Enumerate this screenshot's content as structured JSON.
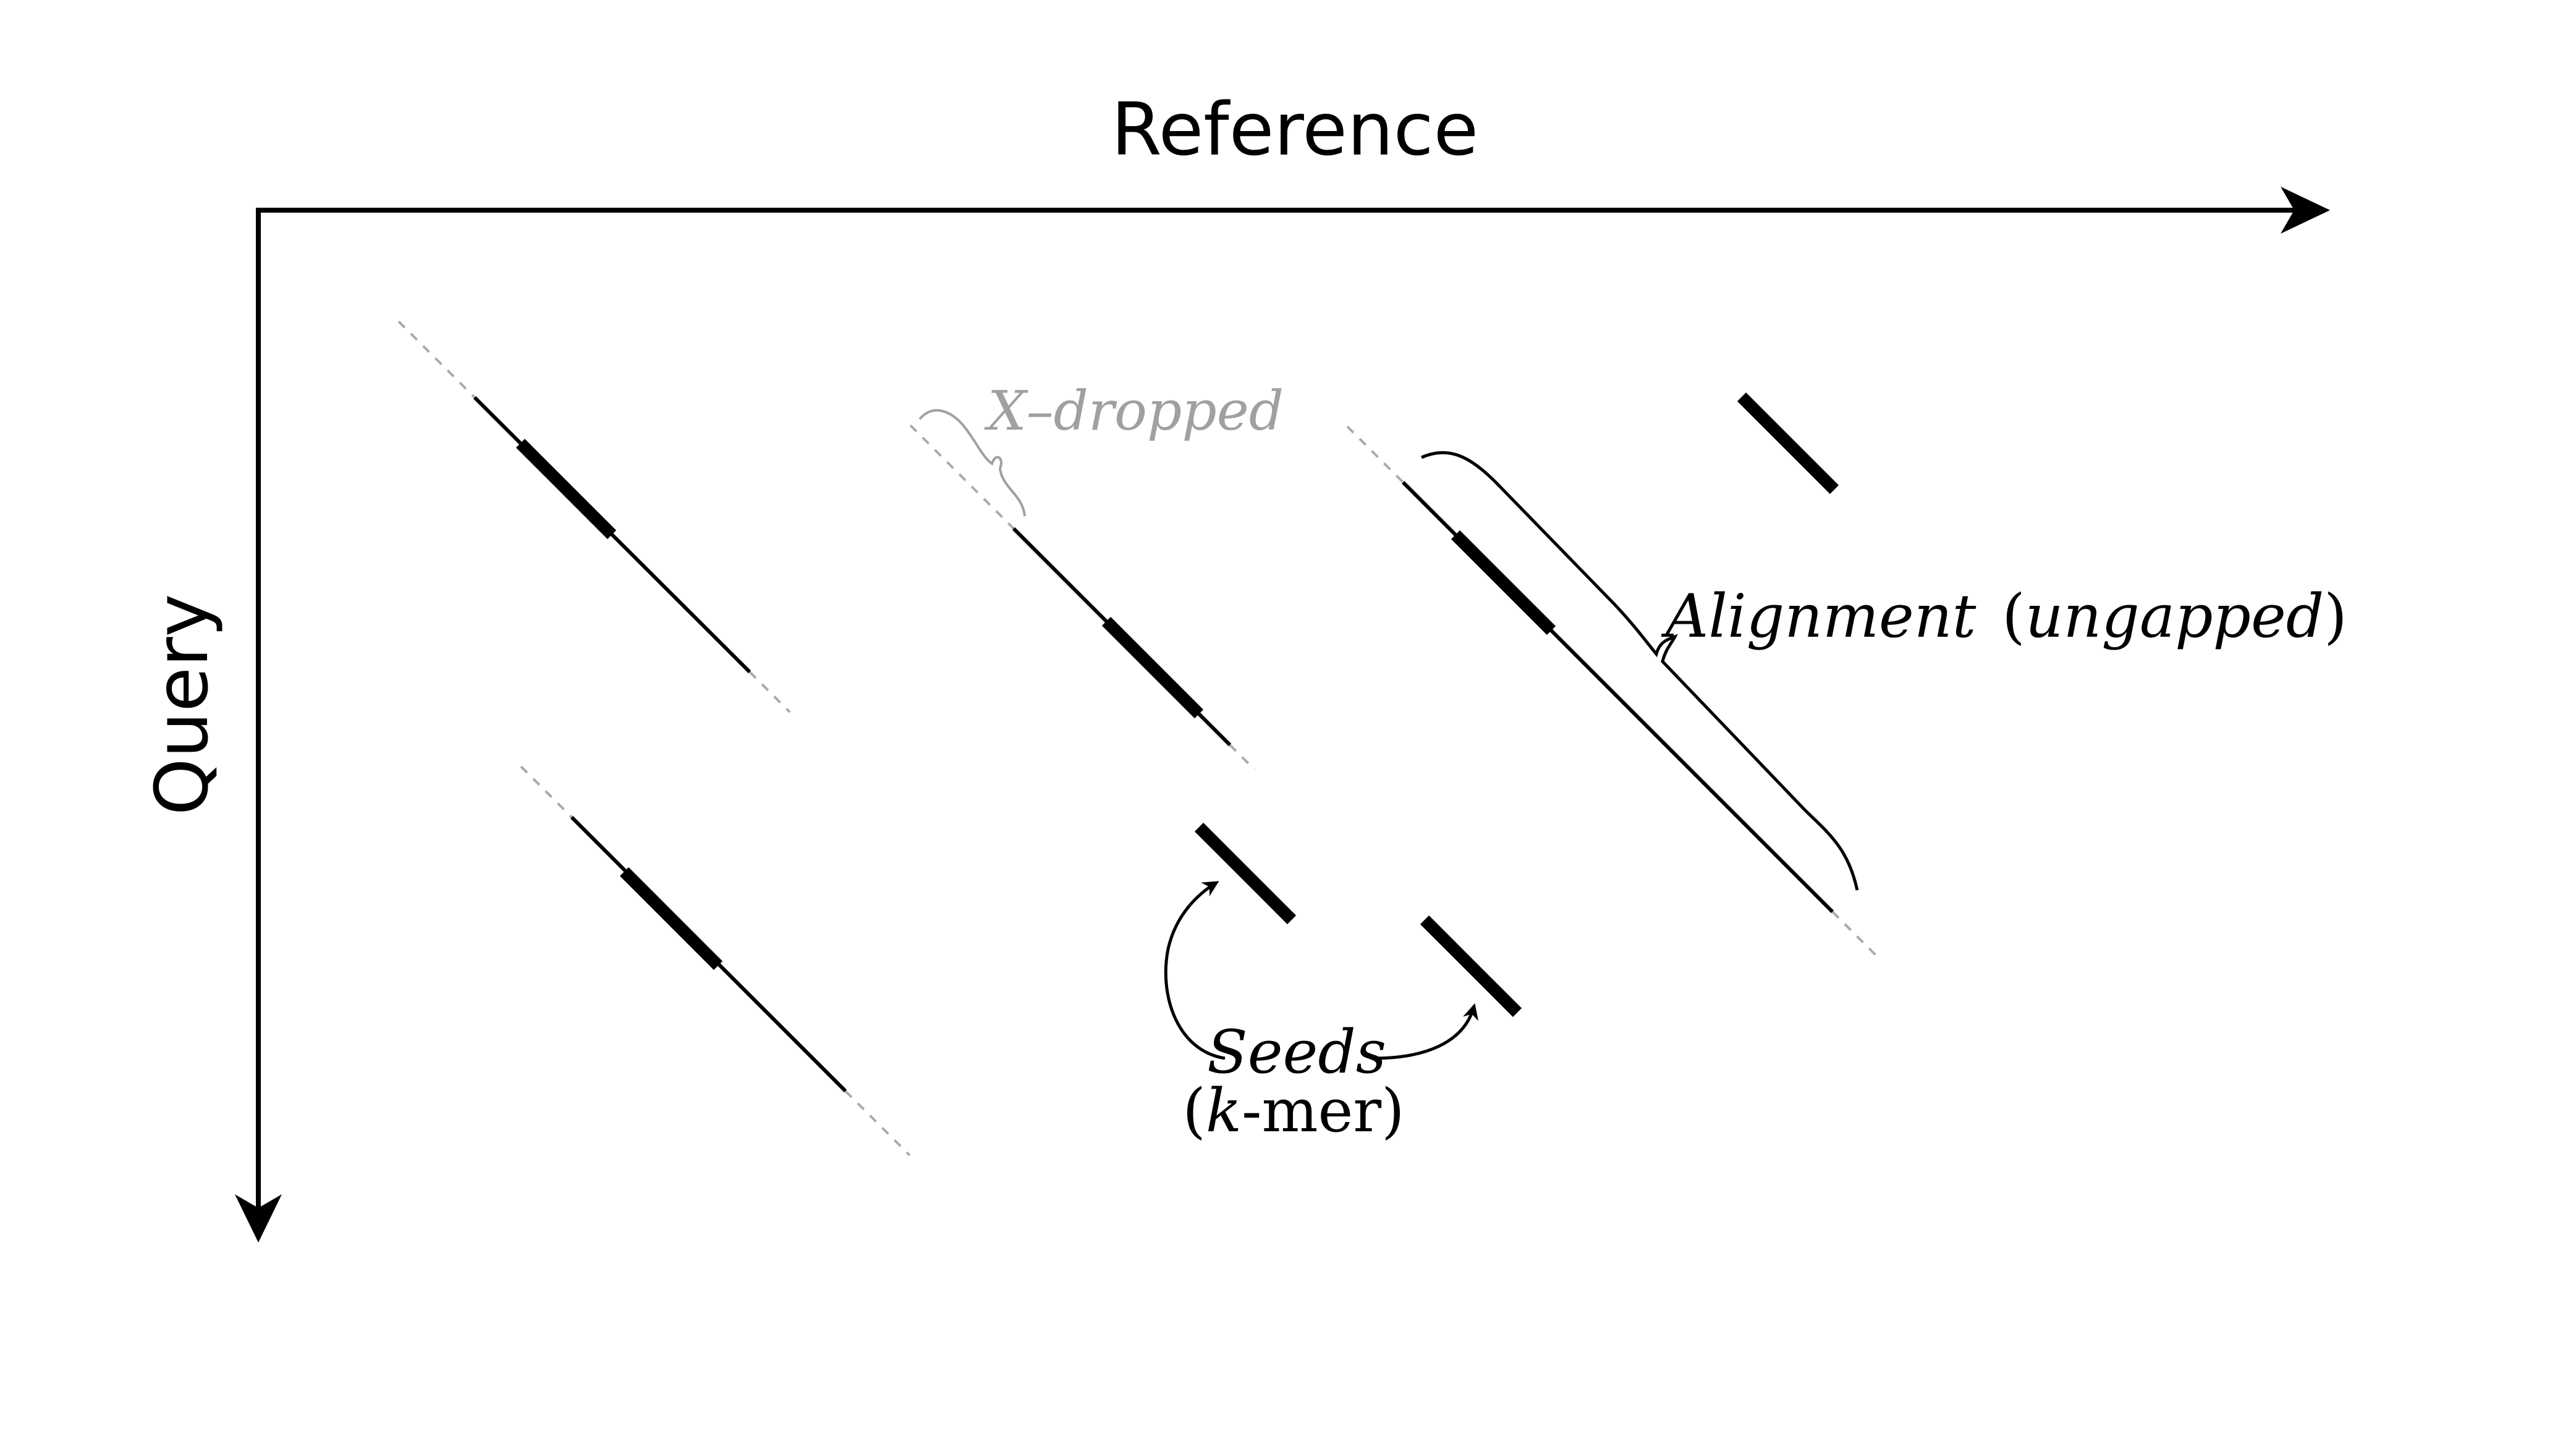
{
  "axes": {
    "x_label": "Reference",
    "y_label": "Query"
  },
  "annotations": {
    "x_dropped": "X–dropped",
    "alignment_italic": "Alignment",
    "alignment_paren_open": "(",
    "alignment_sub": "ungapped",
    "alignment_paren_close": ")",
    "seeds": "Seeds",
    "kmer_open": "(",
    "kmer_k": "k",
    "kmer_rest": "-mer)"
  },
  "colors": {
    "ink": "#000000",
    "dropped": "#a0a0a0"
  }
}
